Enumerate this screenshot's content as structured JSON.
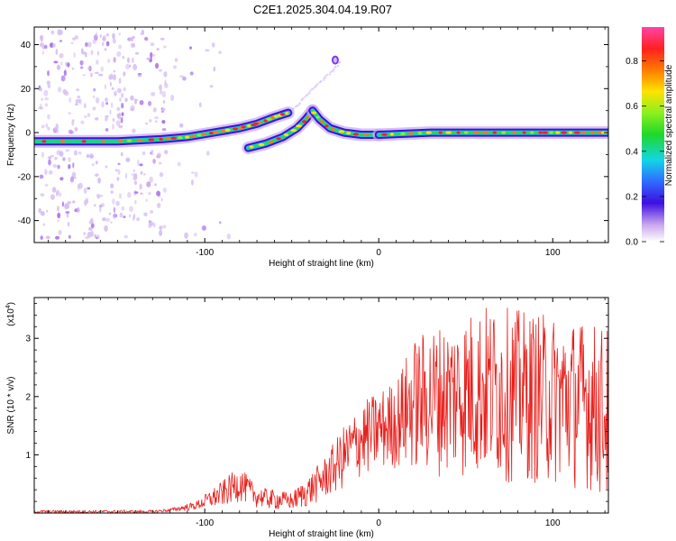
{
  "title": "C2E1.2025.304.04.19.R07",
  "chart_data": [
    {
      "type": "heatmap",
      "id": "spectrogram",
      "xlabel": "Height of straight line (km)",
      "ylabel": "Frequency (Hz)",
      "xlim": [
        -198,
        132
      ],
      "ylim": [
        -50,
        48
      ],
      "xticks": [
        -100,
        0,
        100
      ],
      "yticks": [
        -40,
        -20,
        0,
        20,
        40
      ],
      "xtick_labels": [
        "-100",
        "0",
        "100"
      ],
      "ytick_labels": [
        "-40",
        "-20",
        "0",
        "20",
        "40"
      ],
      "colorbar": {
        "label": "Normalized spectral amplitude",
        "range": [
          0.0,
          0.95
        ],
        "ticks": [
          0.0,
          0.2,
          0.4,
          0.6,
          0.8
        ],
        "tick_labels": [
          "0.0",
          "0.2",
          "0.4",
          "0.6",
          "0.8"
        ]
      },
      "ridges": [
        {
          "name": "main-band",
          "points": [
            [
              -198,
              -4
            ],
            [
              -150,
              -4
            ],
            [
              -125,
              -3
            ],
            [
              -110,
              -2
            ],
            [
              -95,
              0
            ],
            [
              -80,
              2
            ],
            [
              -70,
              4
            ],
            [
              -60,
              7
            ],
            [
              -52,
              9
            ]
          ]
        },
        {
          "name": "upper-branch",
          "points": [
            [
              -75,
              -7
            ],
            [
              -65,
              -5
            ],
            [
              -55,
              -2
            ],
            [
              -47,
              2
            ],
            [
              -42,
              6
            ],
            [
              -38,
              10
            ]
          ]
        },
        {
          "name": "descending",
          "points": [
            [
              -38,
              10
            ],
            [
              -34,
              6
            ],
            [
              -28,
              2
            ],
            [
              -20,
              0
            ],
            [
              -10,
              -1
            ],
            [
              0,
              -1
            ]
          ]
        },
        {
          "name": "tail",
          "points": [
            [
              0,
              -1
            ],
            [
              30,
              0
            ],
            [
              60,
              0
            ],
            [
              90,
              0
            ],
            [
              110,
              0
            ],
            [
              132,
              0
            ]
          ]
        },
        {
          "name": "isolated-blob",
          "points": [
            [
              -26,
              32
            ],
            [
              -24,
              34
            ]
          ]
        }
      ]
    },
    {
      "type": "line",
      "id": "snr",
      "xlabel": "Height of straight line (km)",
      "ylabel": "SNR (10 * v/v)",
      "scale_label": "(x10",
      "scale_exp": "4",
      "xlim": [
        -198,
        132
      ],
      "ylim": [
        0,
        3.7
      ],
      "xticks": [
        -100,
        0,
        100
      ],
      "yticks": [
        1,
        2,
        3
      ],
      "xtick_labels": [
        "-100",
        "0",
        "100"
      ],
      "ytick_labels": [
        "1",
        "2",
        "3"
      ],
      "color": "#e8201c",
      "envelope_x": [
        -198,
        -130,
        -120,
        -105,
        -90,
        -80,
        -70,
        -60,
        -50,
        -40,
        -30,
        -20,
        -10,
        0,
        10,
        20,
        30,
        40,
        60,
        80,
        100,
        120,
        132
      ],
      "envelope_upper": [
        0.05,
        0.05,
        0.08,
        0.2,
        0.55,
        0.8,
        0.45,
        0.4,
        0.35,
        0.65,
        1.0,
        1.5,
        1.9,
        2.1,
        2.3,
        3.0,
        3.2,
        3.3,
        3.6,
        3.5,
        3.4,
        3.3,
        3.2
      ],
      "envelope_lower": [
        0.0,
        0.0,
        0.02,
        0.05,
        0.1,
        0.2,
        0.1,
        0.05,
        0.05,
        0.1,
        0.25,
        0.4,
        0.6,
        0.7,
        0.75,
        0.7,
        0.65,
        0.6,
        0.55,
        0.5,
        0.45,
        0.4,
        0.1
      ]
    }
  ]
}
